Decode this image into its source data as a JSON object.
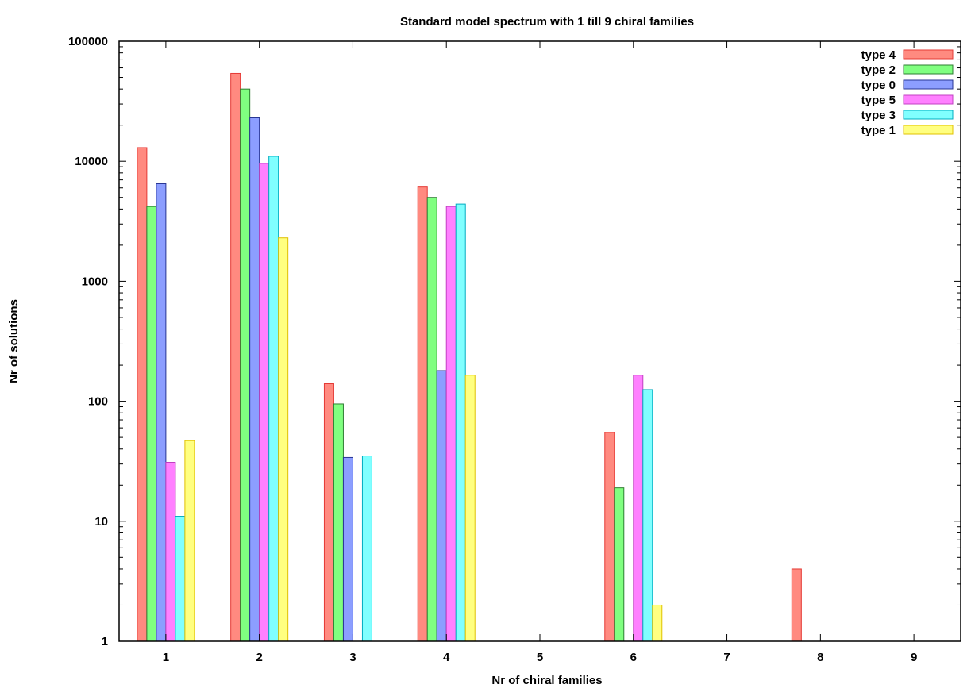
{
  "chart_data": {
    "type": "bar",
    "title": "Standard model spectrum with 1 till 9 chiral families",
    "xlabel": "Nr of chiral families",
    "ylabel": "Nr of solutions",
    "categories": [
      "1",
      "2",
      "3",
      "4",
      "5",
      "6",
      "7",
      "8",
      "9"
    ],
    "yscale": "log",
    "ylim": [
      1,
      100000
    ],
    "yticks": [
      1,
      10,
      100,
      1000,
      10000,
      100000
    ],
    "ytick_labels": [
      "1",
      "10",
      "100",
      "1000",
      "10000",
      "100000"
    ],
    "grid": false,
    "legend_position": "top-right",
    "series": [
      {
        "name": "type 4",
        "color": "#ff8a80",
        "stroke": "#e53935",
        "values": [
          13000,
          54000,
          140,
          6100,
          0,
          55,
          0,
          4,
          0
        ]
      },
      {
        "name": "type 2",
        "color": "#80ff80",
        "stroke": "#2e7d32",
        "values": [
          4200,
          40000,
          95,
          5000,
          0,
          19,
          0,
          0,
          0
        ]
      },
      {
        "name": "type 0",
        "color": "#8c9eff",
        "stroke": "#283593",
        "values": [
          6500,
          23000,
          34,
          180,
          0,
          0,
          0,
          0,
          0
        ]
      },
      {
        "name": "type 5",
        "color": "#ff80ff",
        "stroke": "#c040c0",
        "values": [
          31,
          9600,
          0,
          4200,
          0,
          165,
          0,
          0,
          0
        ]
      },
      {
        "name": "type 3",
        "color": "#80ffff",
        "stroke": "#00acc1",
        "values": [
          11,
          11000,
          35,
          4400,
          0,
          125,
          0,
          0,
          0
        ]
      },
      {
        "name": "type 1",
        "color": "#ffff80",
        "stroke": "#e0c000",
        "values": [
          47,
          2300,
          0,
          165,
          0,
          2,
          0,
          0,
          0
        ]
      }
    ]
  }
}
